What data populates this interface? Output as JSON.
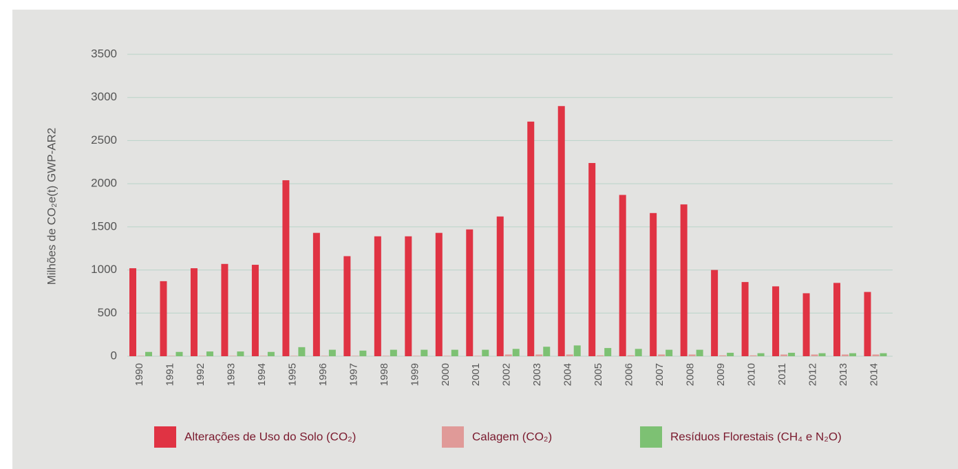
{
  "chart_data": {
    "type": "bar",
    "y_label": "Milhões de CO₂e(t) GWP-AR2",
    "categories": [
      "1990",
      "1991",
      "1992",
      "1993",
      "1994",
      "1995",
      "1996",
      "1997",
      "1998",
      "1999",
      "2000",
      "2001",
      "2002",
      "2003",
      "2004",
      "2005",
      "2006",
      "2007",
      "2008",
      "2009",
      "2010",
      "2011",
      "2012",
      "2013",
      "2014"
    ],
    "series": [
      {
        "name": "Alterações de Uso do Solo (CO₂)",
        "color": "#e03343",
        "values": [
          1020,
          870,
          1020,
          1070,
          1060,
          2040,
          1430,
          1160,
          1390,
          1390,
          1430,
          1470,
          1620,
          2720,
          2900,
          2240,
          1870,
          1660,
          1760,
          1000,
          860,
          810,
          730,
          850,
          745
        ]
      },
      {
        "name": "Calagem (CO₂)",
        "color": "#e09a98",
        "values": [
          5,
          5,
          5,
          5,
          5,
          5,
          5,
          5,
          5,
          5,
          5,
          5,
          20,
          20,
          20,
          10,
          10,
          20,
          20,
          10,
          10,
          20,
          20,
          20,
          20
        ]
      },
      {
        "name": "Resíduos Florestais (CH₄ e N₂O)",
        "color": "#7dc173",
        "values": [
          50,
          50,
          55,
          55,
          50,
          105,
          75,
          65,
          75,
          75,
          75,
          75,
          85,
          110,
          125,
          95,
          85,
          75,
          75,
          40,
          35,
          40,
          35,
          35,
          35
        ]
      }
    ],
    "ylim": [
      0,
      3500
    ],
    "yticks": [
      0,
      500,
      1000,
      1500,
      2000,
      2500,
      3000,
      3500
    ],
    "grid": true
  }
}
